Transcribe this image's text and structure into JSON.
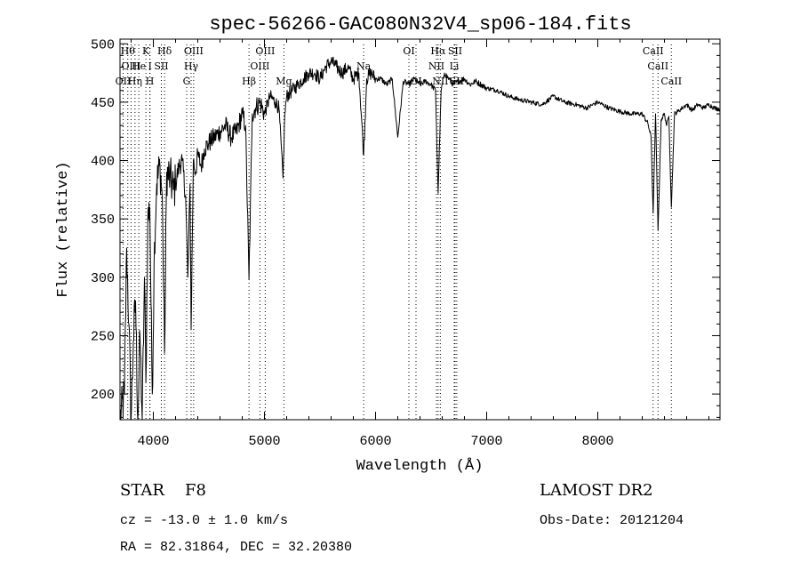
{
  "chart_data": {
    "type": "line",
    "title": "spec-56266-GAC080N32V4_sp06-184.fits",
    "xlabel": "Wavelength (Å)",
    "ylabel": "Flux (relative)",
    "xlim": [
      3700,
      9100
    ],
    "ylim": [
      178,
      504
    ],
    "xticks": [
      4000,
      5000,
      6000,
      7000,
      8000
    ],
    "xtick_labels": [
      "4000",
      "5000",
      "6000",
      "7000",
      "8000"
    ],
    "yticks": [
      200,
      250,
      300,
      350,
      400,
      450,
      500
    ],
    "ytick_labels": [
      "200",
      "250",
      "300",
      "350",
      "400",
      "450",
      "500"
    ],
    "grid": false,
    "series": [
      {
        "color": "#000000",
        "x": [
          3700,
          3740,
          3760,
          3780,
          3800,
          3820,
          3840,
          3860,
          3880,
          3900,
          3920,
          3933,
          3950,
          3968,
          3990,
          4010,
          4030,
          4060,
          4080,
          4101,
          4120,
          4150,
          4180,
          4200,
          4230,
          4260,
          4290,
          4310,
          4330,
          4340,
          4360,
          4380,
          4400,
          4430,
          4460,
          4500,
          4550,
          4600,
          4650,
          4700,
          4750,
          4800,
          4830,
          4861,
          4890,
          4920,
          4960,
          5000,
          5050,
          5100,
          5130,
          5167,
          5183,
          5200,
          5250,
          5300,
          5350,
          5400,
          5450,
          5500,
          5550,
          5600,
          5650,
          5700,
          5750,
          5800,
          5850,
          5893,
          5920,
          5960,
          6000,
          6050,
          6100,
          6150,
          6200,
          6250,
          6300,
          6350,
          6400,
          6450,
          6500,
          6540,
          6563,
          6590,
          6620,
          6660,
          6700,
          6750,
          6800,
          6850,
          6900,
          7000,
          7100,
          7200,
          7300,
          7400,
          7500,
          7600,
          7700,
          7800,
          7900,
          8000,
          8100,
          8200,
          8300,
          8400,
          8450,
          8480,
          8498,
          8520,
          8542,
          8570,
          8600,
          8620,
          8640,
          8662,
          8690,
          8720,
          8760,
          8800,
          8850,
          8900,
          8950,
          9000,
          9050,
          9100
        ],
        "values": [
          178,
          200,
          325,
          260,
          178,
          245,
          280,
          178,
          250,
          178,
          300,
          210,
          350,
          360,
          200,
          330,
          380,
          395,
          370,
          235,
          390,
          385,
          375,
          380,
          395,
          400,
          370,
          300,
          380,
          255,
          400,
          390,
          405,
          395,
          410,
          415,
          420,
          425,
          430,
          420,
          425,
          440,
          430,
          298,
          440,
          445,
          450,
          440,
          455,
          450,
          445,
          385,
          440,
          455,
          460,
          465,
          470,
          475,
          475,
          470,
          480,
          485,
          480,
          475,
          480,
          470,
          475,
          405,
          470,
          475,
          470,
          470,
          465,
          470,
          420,
          468,
          465,
          470,
          465,
          468,
          465,
          460,
          372,
          460,
          475,
          470,
          465,
          468,
          470,
          465,
          468,
          462,
          460,
          455,
          452,
          450,
          448,
          455,
          450,
          448,
          445,
          450,
          445,
          442,
          440,
          440,
          432,
          420,
          355,
          440,
          340,
          435,
          440,
          430,
          438,
          360,
          440,
          442,
          445,
          448,
          443,
          448,
          445,
          448,
          445,
          444
        ]
      }
    ],
    "spectral_lines": [
      {
        "wavelength": 3728,
        "label": "OII",
        "row": 3
      },
      {
        "wavelength": 3770,
        "label": "Hθ",
        "row": 1
      },
      {
        "wavelength": 3800,
        "label": "OIII",
        "row": 2
      },
      {
        "wavelength": 3835,
        "label": "Hη",
        "row": 3
      },
      {
        "wavelength": 3869,
        "label": "He",
        "row": 2
      },
      {
        "wavelength": 3933,
        "label": "K",
        "row": 1
      },
      {
        "wavelength": 3968,
        "label": "H",
        "row": 3
      },
      {
        "wavelength": 3970,
        "label": "I",
        "row": 2
      },
      {
        "wavelength": 4072,
        "label": "SII",
        "row": 2
      },
      {
        "wavelength": 4101,
        "label": "Hδ",
        "row": 1
      },
      {
        "wavelength": 4300,
        "label": "G",
        "row": 3
      },
      {
        "wavelength": 4340,
        "label": "Hγ",
        "row": 2
      },
      {
        "wavelength": 4363,
        "label": "OIII",
        "row": 1
      },
      {
        "wavelength": 4861,
        "label": "Hβ",
        "row": 3
      },
      {
        "wavelength": 4959,
        "label": "OIII",
        "row": 2
      },
      {
        "wavelength": 5007,
        "label": "OIII",
        "row": 1
      },
      {
        "wavelength": 5175,
        "label": "Mg",
        "row": 3
      },
      {
        "wavelength": 5893,
        "label": "Na",
        "row": 2
      },
      {
        "wavelength": 6300,
        "label": "OI",
        "row": 1
      },
      {
        "wavelength": 6364,
        "label": "OI",
        "row": 3
      },
      {
        "wavelength": 6548,
        "label": "NII",
        "row": 2
      },
      {
        "wavelength": 6563,
        "label": "Hα",
        "row": 1
      },
      {
        "wavelength": 6583,
        "label": "NII",
        "row": 3
      },
      {
        "wavelength": 6708,
        "label": "Li",
        "row": 2
      },
      {
        "wavelength": 6716,
        "label": "SII",
        "row": 1
      },
      {
        "wavelength": 6731,
        "label": "SII",
        "row": 3
      },
      {
        "wavelength": 8498,
        "label": "CaII",
        "row": 1
      },
      {
        "wavelength": 8542,
        "label": "CaII",
        "row": 2
      },
      {
        "wavelength": 8662,
        "label": "CaII",
        "row": 3
      }
    ]
  },
  "info": {
    "object_class": "STAR",
    "subclass": "F8",
    "survey": "LAMOST DR2",
    "redshift": "cz = -13.0 ± 1.0 km/s",
    "obs_date": "Obs-Date: 20121204",
    "coords": "RA =  82.31864, DEC =  32.20380"
  },
  "colors": {
    "plot": "#000000",
    "line_markers": "#000000",
    "background": "#ffffff"
  }
}
